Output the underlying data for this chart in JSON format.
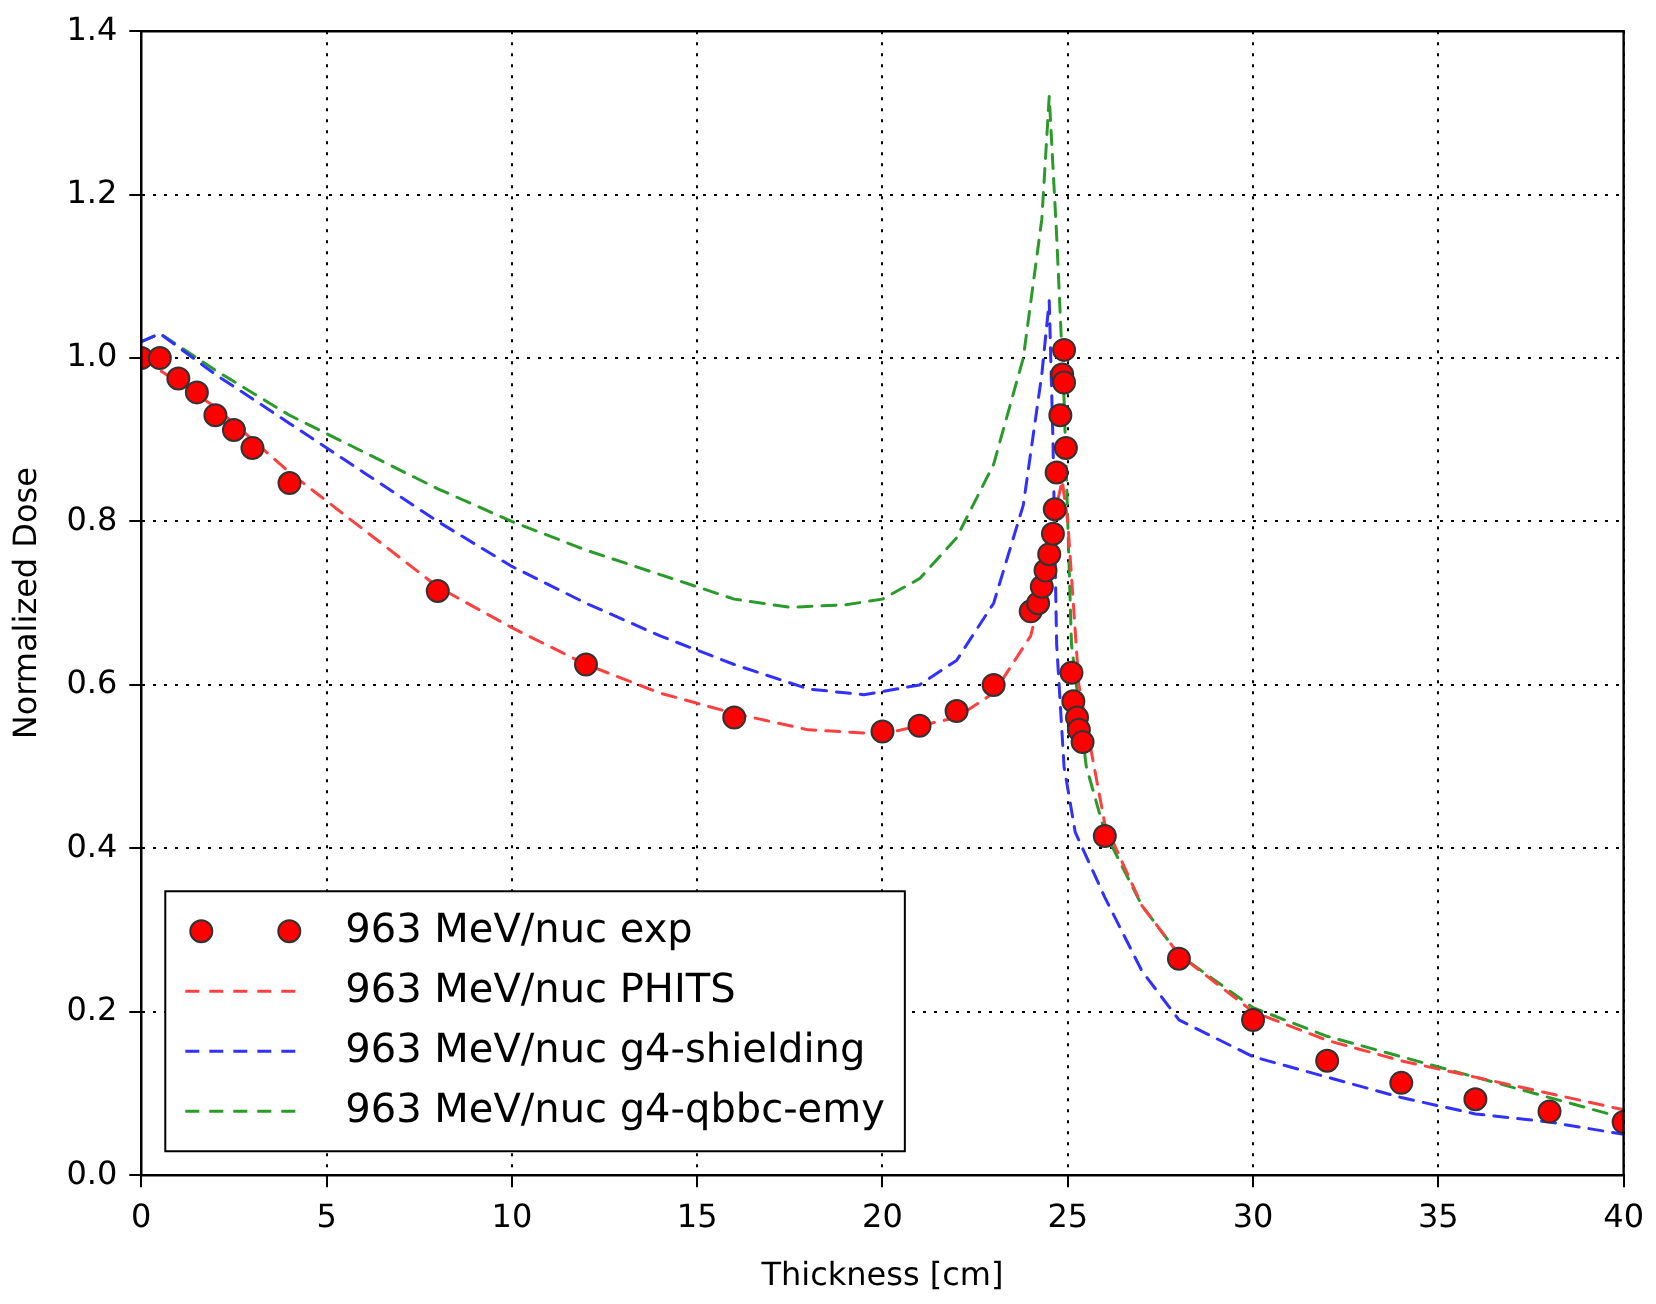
{
  "chart_data": {
    "type": "line",
    "xlabel": "Thickness [cm]",
    "ylabel": "Normalized Dose",
    "xlim": [
      0,
      40
    ],
    "xticks": [
      0,
      5,
      10,
      15,
      20,
      25,
      30,
      35,
      40
    ],
    "ylim": [
      0,
      1.4
    ],
    "yticks": [
      {
        "value": 0,
        "label": "0.0"
      },
      0.2,
      0.4,
      0.6,
      0.8,
      {
        "value": 1,
        "label": "1.0"
      },
      1.2,
      1.4
    ],
    "grid": true,
    "legend": "bottom left",
    "series": [
      {
        "name": "963 MeV/nuc exp",
        "type": "scatter",
        "marker": "circle",
        "color": "#ff0000",
        "x": [
          0,
          0.5,
          1,
          1.5,
          2,
          2.5,
          3,
          4,
          8,
          12,
          16,
          20,
          21,
          22,
          23,
          24,
          24.2,
          24.3,
          24.4,
          24.5,
          24.6,
          24.65,
          24.7,
          24.8,
          24.85,
          24.9,
          24.9,
          24.95,
          25.1,
          25.15,
          25.25,
          25.3,
          25.4,
          26,
          28,
          30,
          32,
          34,
          36,
          38,
          40
        ],
        "values": [
          1.0,
          1.0,
          0.975,
          0.958,
          0.93,
          0.912,
          0.89,
          0.847,
          0.715,
          0.625,
          0.56,
          0.543,
          0.55,
          0.568,
          0.6,
          0.69,
          0.7,
          0.72,
          0.74,
          0.76,
          0.785,
          0.815,
          0.86,
          0.93,
          0.98,
          0.97,
          1.01,
          0.89,
          0.615,
          0.58,
          0.56,
          0.545,
          0.53,
          0.415,
          0.265,
          0.19,
          0.14,
          0.113,
          0.093,
          0.078,
          0.065
        ]
      },
      {
        "name": "963 MeV/nuc PHITS",
        "line_style": "dashed",
        "color": "#ff4040",
        "x": [
          0,
          2,
          4,
          6,
          8,
          10,
          12,
          14,
          16,
          18,
          20,
          22,
          23,
          24,
          24.5,
          24.7,
          24.85,
          25,
          25.15,
          25.3,
          26,
          27,
          28,
          30,
          32,
          34,
          36,
          38,
          40
        ],
        "values": [
          1.0,
          0.94,
          0.86,
          0.79,
          0.72,
          0.67,
          0.625,
          0.59,
          0.565,
          0.545,
          0.54,
          0.56,
          0.59,
          0.66,
          0.75,
          0.82,
          0.85,
          0.8,
          0.7,
          0.6,
          0.43,
          0.33,
          0.27,
          0.2,
          0.165,
          0.14,
          0.12,
          0.1,
          0.08
        ]
      },
      {
        "name": "963 MeV/nuc g4-shielding",
        "line_style": "dashed",
        "color": "#3030ff",
        "x": [
          0,
          0.5,
          2,
          4,
          6,
          8,
          10,
          12,
          14,
          16,
          18,
          19.5,
          21,
          22,
          23,
          23.8,
          24.3,
          24.5,
          24.6,
          24.7,
          24.9,
          25.2,
          26,
          27,
          28,
          30,
          32,
          34,
          36,
          38,
          40
        ],
        "values": [
          1.02,
          1.03,
          0.98,
          0.92,
          0.86,
          0.8,
          0.745,
          0.7,
          0.66,
          0.625,
          0.595,
          0.588,
          0.6,
          0.63,
          0.7,
          0.82,
          0.98,
          1.07,
          0.9,
          0.65,
          0.5,
          0.42,
          0.34,
          0.25,
          0.19,
          0.145,
          0.12,
          0.095,
          0.075,
          0.065,
          0.05
        ]
      },
      {
        "name": "963 MeV/nuc g4-qbbc-emy",
        "line_style": "dashed",
        "color": "#2a9a2a",
        "x": [
          0,
          0.5,
          2,
          4,
          6,
          8,
          10,
          12,
          14,
          16,
          17.5,
          19,
          20,
          21,
          22,
          23,
          23.8,
          24.3,
          24.5,
          24.7,
          24.9,
          25.1,
          25.5,
          26,
          27,
          28,
          30,
          32,
          34,
          36,
          38,
          40
        ],
        "values": [
          1.02,
          1.03,
          0.985,
          0.93,
          0.885,
          0.84,
          0.8,
          0.765,
          0.735,
          0.705,
          0.695,
          0.698,
          0.705,
          0.73,
          0.78,
          0.87,
          1.0,
          1.17,
          1.32,
          1.15,
          0.95,
          0.65,
          0.5,
          0.42,
          0.33,
          0.27,
          0.205,
          0.17,
          0.145,
          0.12,
          0.095,
          0.07
        ]
      }
    ]
  }
}
